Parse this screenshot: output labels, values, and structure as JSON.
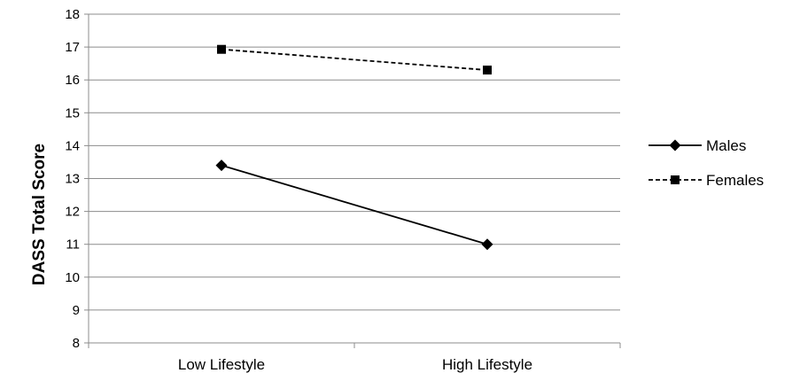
{
  "chart_data": {
    "type": "line",
    "categories": [
      "Low Lifestyle",
      "High Lifestyle"
    ],
    "series": [
      {
        "name": "Males",
        "values": [
          13.4,
          11.0
        ],
        "marker": "diamond",
        "line_style": "solid",
        "color": "#000000"
      },
      {
        "name": "Females",
        "values": [
          16.93,
          16.3
        ],
        "marker": "square",
        "line_style": "dashed",
        "color": "#000000"
      }
    ],
    "title": "",
    "xlabel": "",
    "ylabel": "DASS Total Score",
    "ylim": [
      8,
      18
    ],
    "yticks": [
      8,
      9,
      10,
      11,
      12,
      13,
      14,
      15,
      16,
      17,
      18
    ],
    "grid": true,
    "legend_position": "right"
  }
}
